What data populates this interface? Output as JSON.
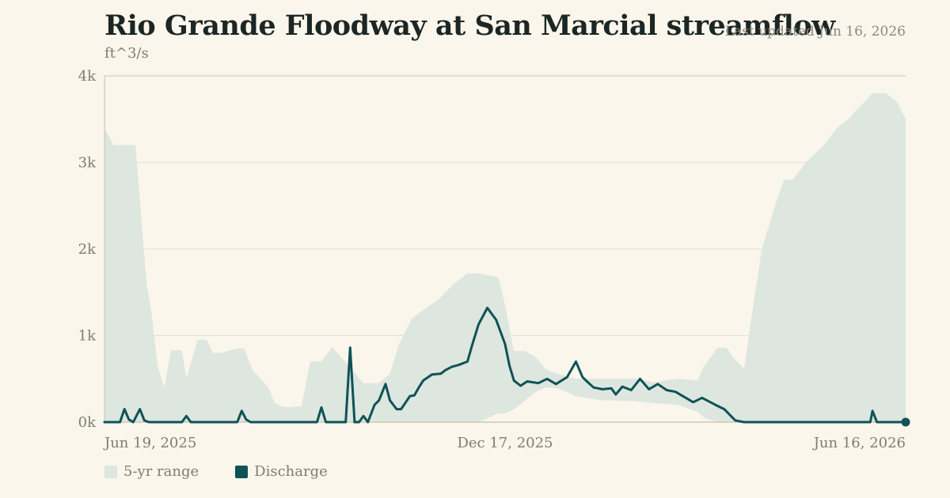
{
  "header": {
    "title": "Rio Grande Floodway at San Marcial streamflow",
    "updated": "Last updated Jun 16, 2026",
    "unit": "ft^3/s"
  },
  "colors": {
    "background": "#faf6ec",
    "range_fill": "#dde6df",
    "discharge_line": "#0f5257",
    "grid": "#e6e0cf",
    "axis": "#cfc7b1",
    "tick_text": "#7d7d72"
  },
  "legend": {
    "range_label": "5-yr range",
    "discharge_label": "Discharge"
  },
  "chart_data": {
    "type": "area",
    "title": "Rio Grande Floodway at San Marcial streamflow",
    "ylabel": "ft^3/s",
    "ylim": [
      0,
      4000
    ],
    "yticks": [
      0,
      1000,
      2000,
      3000,
      4000
    ],
    "ytick_labels": [
      "0k",
      "1k",
      "2k",
      "3k",
      "4k"
    ],
    "xlim": [
      "2025-06-19",
      "2026-06-16"
    ],
    "xtick_labels": [
      "Jun 19, 2025",
      "Dec 17, 2025",
      "Jun 16, 2026"
    ],
    "xtick_dates": [
      "2025-06-19",
      "2025-12-17",
      "2026-06-16"
    ],
    "grid": true,
    "legend_position": "bottom-left",
    "series": [
      {
        "name": "5-yr range",
        "kind": "band",
        "x": [
          "2025-06-19",
          "2025-06-23",
          "2025-06-26",
          "2025-06-29",
          "2025-07-03",
          "2025-07-08",
          "2025-07-10",
          "2025-07-13",
          "2025-07-16",
          "2025-07-19",
          "2025-07-24",
          "2025-07-26",
          "2025-07-31",
          "2025-08-04",
          "2025-08-07",
          "2025-08-11",
          "2025-08-18",
          "2025-08-21",
          "2025-08-25",
          "2025-09-01",
          "2025-09-04",
          "2025-09-07",
          "2025-09-10",
          "2025-09-14",
          "2025-09-16",
          "2025-09-20",
          "2025-09-25",
          "2025-09-30",
          "2025-10-14",
          "2025-10-21",
          "2025-10-26",
          "2025-10-30",
          "2025-11-05",
          "2025-11-17",
          "2025-11-24",
          "2025-11-30",
          "2025-12-05",
          "2025-12-14",
          "2025-12-17",
          "2025-12-21",
          "2025-12-26",
          "2025-12-31",
          "2026-01-04",
          "2026-01-07",
          "2026-01-11",
          "2026-01-18",
          "2026-01-30",
          "2026-02-05",
          "2026-02-15",
          "2026-02-22",
          "2026-03-05",
          "2026-03-14",
          "2026-03-17",
          "2026-03-23",
          "2026-03-27",
          "2026-03-31",
          "2026-04-04",
          "2026-04-07",
          "2026-04-12",
          "2026-04-18",
          "2026-04-22",
          "2026-04-26",
          "2026-05-02",
          "2026-05-10",
          "2026-05-16",
          "2026-05-21",
          "2026-06-01",
          "2026-06-07",
          "2026-06-12",
          "2026-06-16"
        ],
        "low": [
          0,
          0,
          0,
          0,
          0,
          0,
          0,
          0,
          0,
          0,
          0,
          0,
          0,
          0,
          0,
          0,
          0,
          0,
          0,
          0,
          0,
          0,
          0,
          0,
          0,
          0,
          0,
          0,
          0,
          0,
          0,
          0,
          0,
          0,
          0,
          0,
          0,
          100,
          100,
          150,
          250,
          350,
          400,
          400,
          380,
          300,
          250,
          250,
          240,
          220,
          200,
          120,
          50,
          0,
          0,
          0,
          0,
          0,
          0,
          0,
          0,
          0,
          0,
          0,
          0,
          0,
          0,
          0,
          0,
          0
        ],
        "high": [
          3400,
          3200,
          3200,
          3200,
          3200,
          1600,
          1300,
          650,
          400,
          830,
          830,
          500,
          950,
          950,
          800,
          800,
          850,
          850,
          600,
          400,
          220,
          180,
          170,
          180,
          180,
          700,
          700,
          870,
          450,
          450,
          560,
          900,
          1200,
          1420,
          1600,
          1720,
          1720,
          1670,
          1350,
          820,
          820,
          750,
          620,
          580,
          550,
          500,
          500,
          500,
          500,
          460,
          500,
          480,
          650,
          860,
          860,
          720,
          620,
          1150,
          2000,
          2500,
          2800,
          2800,
          3000,
          3200,
          3400,
          3500,
          3800,
          3800,
          3700,
          3500
        ]
      },
      {
        "name": "Discharge",
        "kind": "line",
        "x": [
          "2025-06-19",
          "2025-06-26",
          "2025-06-28",
          "2025-06-30",
          "2025-07-02",
          "2025-07-05",
          "2025-07-07",
          "2025-07-09",
          "2025-07-11",
          "2025-07-13",
          "2025-07-16",
          "2025-07-24",
          "2025-07-26",
          "2025-07-28",
          "2025-08-18",
          "2025-08-20",
          "2025-08-22",
          "2025-08-24",
          "2025-08-26",
          "2025-09-23",
          "2025-09-25",
          "2025-09-27",
          "2025-10-06",
          "2025-10-08",
          "2025-10-10",
          "2025-10-12",
          "2025-10-14",
          "2025-10-16",
          "2025-10-19",
          "2025-10-21",
          "2025-10-24",
          "2025-10-26",
          "2025-10-29",
          "2025-10-31",
          "2025-11-04",
          "2025-11-06",
          "2025-11-08",
          "2025-11-10",
          "2025-11-14",
          "2025-11-18",
          "2025-11-20",
          "2025-11-23",
          "2025-11-26",
          "2025-11-30",
          "2025-12-02",
          "2025-12-05",
          "2025-12-09",
          "2025-12-13",
          "2025-12-17",
          "2025-12-19",
          "2025-12-21",
          "2025-12-24",
          "2025-12-27",
          "2026-01-01",
          "2026-01-05",
          "2026-01-09",
          "2026-01-14",
          "2026-01-18",
          "2026-01-21",
          "2026-01-23",
          "2026-01-26",
          "2026-01-30",
          "2026-02-03",
          "2026-02-05",
          "2026-02-08",
          "2026-02-12",
          "2026-02-16",
          "2026-02-20",
          "2026-02-24",
          "2026-02-28",
          "2026-03-04",
          "2026-03-08",
          "2026-03-12",
          "2026-03-16",
          "2026-03-19",
          "2026-03-22",
          "2026-03-26",
          "2026-03-31",
          "2026-04-04",
          "2026-05-31",
          "2026-06-01",
          "2026-06-03",
          "2026-06-16"
        ],
        "y": [
          0,
          0,
          150,
          30,
          0,
          150,
          20,
          0,
          0,
          0,
          0,
          0,
          70,
          0,
          0,
          130,
          30,
          0,
          0,
          0,
          170,
          0,
          0,
          860,
          0,
          0,
          70,
          0,
          200,
          250,
          440,
          250,
          150,
          150,
          300,
          310,
          400,
          480,
          550,
          560,
          600,
          640,
          660,
          700,
          880,
          1130,
          1320,
          1180,
          900,
          650,
          480,
          420,
          470,
          450,
          500,
          440,
          520,
          700,
          520,
          470,
          400,
          380,
          390,
          320,
          410,
          370,
          500,
          380,
          440,
          370,
          350,
          290,
          230,
          280,
          240,
          200,
          150,
          20,
          0,
          0,
          130,
          0,
          0
        ]
      }
    ]
  }
}
